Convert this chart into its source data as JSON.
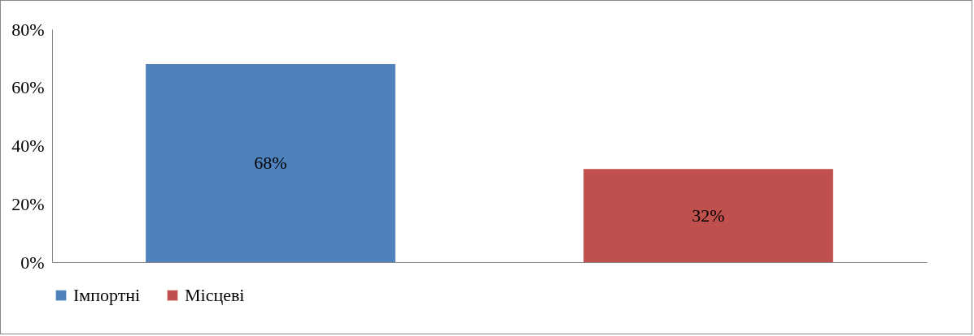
{
  "chart_data": {
    "type": "bar",
    "categories": [
      null,
      null
    ],
    "series": [
      {
        "name": "Імпортні",
        "color": "#4f81bd",
        "values": [
          68,
          null
        ],
        "value_labels": [
          "68%",
          null
        ]
      },
      {
        "name": "Місцеві",
        "color": "#c0504d",
        "values": [
          null,
          32
        ],
        "value_labels": [
          null,
          "32%"
        ]
      }
    ],
    "ylim": [
      0,
      80
    ],
    "yticks": [
      {
        "value": 0,
        "label": "0%"
      },
      {
        "value": 20,
        "label": "20%"
      },
      {
        "value": 40,
        "label": "40%"
      },
      {
        "value": 60,
        "label": "60%"
      },
      {
        "value": 80,
        "label": "80%"
      }
    ],
    "legend": "bottom",
    "grid": false
  }
}
